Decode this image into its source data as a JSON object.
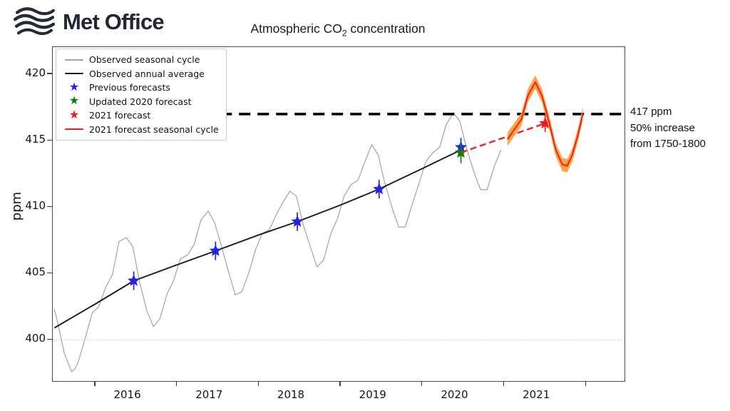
{
  "header": {
    "logo_text": "Met Office",
    "title_pre": "Atmospheric CO",
    "title_sub": "2",
    "title_post": " concentration"
  },
  "axes": {
    "ylabel": "ppm",
    "y_tick_labels": [
      "420",
      "415",
      "410",
      "405",
      "400"
    ],
    "x_tick_labels": [
      "2016",
      "2017",
      "2018",
      "2019",
      "2020",
      "2021"
    ]
  },
  "annotation": {
    "lines": [
      "417 ppm",
      "50% increase",
      "from 1750-1800"
    ]
  },
  "legend": {
    "items": [
      {
        "marker": "line",
        "color": "#a3a3a3",
        "thickness": 1.5,
        "label": "Observed seasonal cycle"
      },
      {
        "marker": "line",
        "color": "#1c1c1c",
        "thickness": 2,
        "label": "Observed annual average"
      },
      {
        "marker": "star",
        "color": "#2323e6",
        "label": "Previous forecasts"
      },
      {
        "marker": "star",
        "color": "#0b7c0b",
        "label": "Updated 2020 forecast"
      },
      {
        "marker": "star",
        "color": "#ec1c24",
        "label": "2021 forecast"
      },
      {
        "marker": "line",
        "color": "#ec1c24",
        "thickness": 2,
        "label": "2021 forecast seasonal cycle"
      }
    ]
  },
  "chart_data": {
    "type": "line",
    "title": "Atmospheric CO2 concentration",
    "ylabel": "ppm",
    "x_range": [
      2015.48,
      2022.47
    ],
    "y_range": [
      396.9,
      422.04
    ],
    "y_ticks": [
      420,
      415,
      410,
      405,
      400
    ],
    "x_tick_years": [
      2016,
      2017,
      2018,
      2019,
      2020,
      2021,
      2022
    ],
    "x_label_years": [
      2016,
      2017,
      2018,
      2019,
      2020,
      2021
    ],
    "x_label_offset": 0.4,
    "grid": false,
    "legend_position": "upper left",
    "reference_lines": {
      "threshold_417": {
        "value": 417,
        "style": "dashed",
        "color": "#000000",
        "x_start": 2017.53
      },
      "baseline_400": {
        "value": 400,
        "style": "dotted",
        "color": "#bbbbbb"
      }
    },
    "series": [
      {
        "name": "Observed seasonal cycle",
        "kind": "polyline",
        "color": "#a3a3a3",
        "width": 1.2,
        "points": [
          [
            2015.5,
            402.3
          ],
          [
            2015.54,
            401.3
          ],
          [
            2015.62,
            399.0
          ],
          [
            2015.71,
            397.6
          ],
          [
            2015.75,
            397.8
          ],
          [
            2015.79,
            398.3
          ],
          [
            2015.88,
            400.2
          ],
          [
            2015.96,
            402.0
          ],
          [
            2016.04,
            402.5
          ],
          [
            2016.13,
            404.0
          ],
          [
            2016.21,
            404.9
          ],
          [
            2016.29,
            407.4
          ],
          [
            2016.38,
            407.7
          ],
          [
            2016.46,
            407.0
          ],
          [
            2016.54,
            404.4
          ],
          [
            2016.63,
            402.2
          ],
          [
            2016.71,
            401.0
          ],
          [
            2016.79,
            401.6
          ],
          [
            2016.88,
            403.5
          ],
          [
            2016.96,
            404.5
          ],
          [
            2017.04,
            406.1
          ],
          [
            2017.13,
            406.4
          ],
          [
            2017.21,
            407.2
          ],
          [
            2017.29,
            409.0
          ],
          [
            2017.38,
            409.7
          ],
          [
            2017.46,
            408.8
          ],
          [
            2017.54,
            407.1
          ],
          [
            2017.63,
            405.1
          ],
          [
            2017.71,
            403.4
          ],
          [
            2017.79,
            403.6
          ],
          [
            2017.88,
            405.1
          ],
          [
            2017.96,
            406.8
          ],
          [
            2018.04,
            408.0
          ],
          [
            2018.13,
            408.3
          ],
          [
            2018.21,
            409.4
          ],
          [
            2018.29,
            410.3
          ],
          [
            2018.38,
            411.2
          ],
          [
            2018.46,
            410.8
          ],
          [
            2018.54,
            408.7
          ],
          [
            2018.63,
            407.0
          ],
          [
            2018.71,
            405.5
          ],
          [
            2018.79,
            406.0
          ],
          [
            2018.88,
            408.0
          ],
          [
            2018.96,
            409.1
          ],
          [
            2019.04,
            410.8
          ],
          [
            2019.13,
            411.7
          ],
          [
            2019.21,
            412.0
          ],
          [
            2019.29,
            413.3
          ],
          [
            2019.38,
            414.7
          ],
          [
            2019.46,
            413.9
          ],
          [
            2019.54,
            411.8
          ],
          [
            2019.63,
            409.9
          ],
          [
            2019.71,
            408.5
          ],
          [
            2019.79,
            408.5
          ],
          [
            2019.88,
            410.3
          ],
          [
            2019.96,
            411.8
          ],
          [
            2020.04,
            413.4
          ],
          [
            2020.13,
            414.1
          ],
          [
            2020.21,
            414.5
          ],
          [
            2020.29,
            416.2
          ],
          [
            2020.38,
            417.1
          ],
          [
            2020.46,
            416.4
          ],
          [
            2020.54,
            414.4
          ],
          [
            2020.63,
            412.6
          ],
          [
            2020.71,
            411.3
          ],
          [
            2020.79,
            411.3
          ],
          [
            2020.88,
            413.1
          ],
          [
            2020.96,
            414.3
          ]
        ]
      },
      {
        "name": "Observed annual average",
        "kind": "polyline",
        "color": "#1c1c1c",
        "width": 1.9,
        "points": [
          [
            2015.5,
            400.9
          ],
          [
            2016.0,
            402.7
          ],
          [
            2016.47,
            404.45
          ],
          [
            2017.0,
            405.65
          ],
          [
            2017.47,
            406.7
          ],
          [
            2018.0,
            407.9
          ],
          [
            2018.47,
            408.9
          ],
          [
            2019.0,
            410.15
          ],
          [
            2019.47,
            411.35
          ],
          [
            2020.0,
            412.9
          ],
          [
            2020.47,
            414.3
          ]
        ]
      },
      {
        "name": "Previous forecasts",
        "kind": "stars",
        "color": "#2323e6",
        "error": 0.7,
        "points": [
          [
            2016.47,
            404.45
          ],
          [
            2017.47,
            406.7
          ],
          [
            2018.47,
            408.9
          ],
          [
            2019.47,
            411.35
          ],
          [
            2020.47,
            414.5
          ]
        ]
      },
      {
        "name": "Updated 2020 forecast",
        "kind": "stars",
        "color": "#0b7c0b",
        "error": 0.8,
        "points": [
          [
            2020.47,
            414.1
          ]
        ]
      },
      {
        "name": "2021 forecast",
        "kind": "stars",
        "color": "#ec1c24",
        "error": 0.65,
        "points": [
          [
            2021.5,
            416.3
          ]
        ]
      },
      {
        "name": "2021 forecast trend",
        "kind": "dashed-line",
        "color": "#ee2224",
        "width": 2.4,
        "points": [
          [
            2020.47,
            414.1
          ],
          [
            2021.5,
            416.3
          ]
        ]
      },
      {
        "name": "2021 forecast seasonal cycle",
        "kind": "polyline-band",
        "color": "#ee2224",
        "width": 2,
        "band_color": "#fba13f",
        "band_halfwidth": 0.5,
        "points": [
          [
            2021.04,
            415.1
          ],
          [
            2021.13,
            415.9
          ],
          [
            2021.21,
            416.6
          ],
          [
            2021.29,
            418.4
          ],
          [
            2021.38,
            419.4
          ],
          [
            2021.46,
            418.4
          ],
          [
            2021.54,
            416.6
          ],
          [
            2021.63,
            414.3
          ],
          [
            2021.71,
            413.2
          ],
          [
            2021.77,
            413.1
          ],
          [
            2021.83,
            413.9
          ],
          [
            2021.9,
            415.4
          ],
          [
            2021.96,
            417.0
          ]
        ]
      }
    ]
  }
}
